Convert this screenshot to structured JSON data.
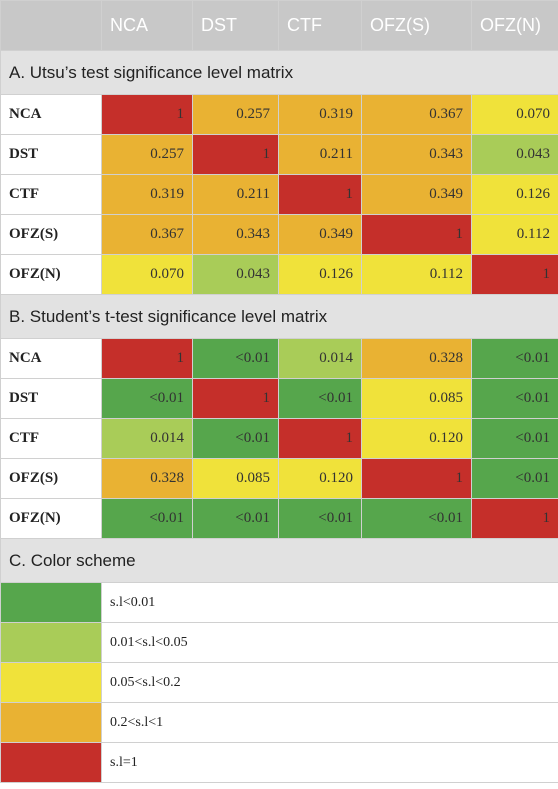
{
  "colors": {
    "dark_green": "#56a64c",
    "light_green": "#a9cc58",
    "yellow": "#f0e23a",
    "orange": "#e9b233",
    "red": "#c52f2a"
  },
  "header": [
    "",
    "NCA",
    "DST",
    "CTF",
    "OFZ(S)",
    "OFZ(N)"
  ],
  "utsu": {
    "title": "A. Utsu’s test significance level matrix",
    "rows": [
      {
        "label": "NCA",
        "cells": [
          {
            "v": "1",
            "c": "red"
          },
          {
            "v": "0.257",
            "c": "orange"
          },
          {
            "v": "0.319",
            "c": "orange"
          },
          {
            "v": "0.367",
            "c": "orange"
          },
          {
            "v": "0.070",
            "c": "yellow"
          }
        ]
      },
      {
        "label": "DST",
        "cells": [
          {
            "v": "0.257",
            "c": "orange"
          },
          {
            "v": "1",
            "c": "red"
          },
          {
            "v": "0.211",
            "c": "orange"
          },
          {
            "v": "0.343",
            "c": "orange"
          },
          {
            "v": "0.043",
            "c": "light_green"
          }
        ]
      },
      {
        "label": "CTF",
        "cells": [
          {
            "v": "0.319",
            "c": "orange"
          },
          {
            "v": "0.211",
            "c": "orange"
          },
          {
            "v": "1",
            "c": "red"
          },
          {
            "v": "0.349",
            "c": "orange"
          },
          {
            "v": "0.126",
            "c": "yellow"
          }
        ]
      },
      {
        "label": "OFZ(S)",
        "cells": [
          {
            "v": "0.367",
            "c": "orange"
          },
          {
            "v": "0.343",
            "c": "orange"
          },
          {
            "v": "0.349",
            "c": "orange"
          },
          {
            "v": "1",
            "c": "red"
          },
          {
            "v": "0.112",
            "c": "yellow"
          }
        ]
      },
      {
        "label": "OFZ(N)",
        "cells": [
          {
            "v": "0.070",
            "c": "yellow"
          },
          {
            "v": "0.043",
            "c": "light_green"
          },
          {
            "v": "0.126",
            "c": "yellow"
          },
          {
            "v": "0.112",
            "c": "yellow"
          },
          {
            "v": "1",
            "c": "red"
          }
        ]
      }
    ]
  },
  "student": {
    "title": "B. Student’s t-test significance level matrix",
    "rows": [
      {
        "label": "NCA",
        "cells": [
          {
            "v": "1",
            "c": "red"
          },
          {
            "v": "<0.01",
            "c": "dark_green"
          },
          {
            "v": "0.014",
            "c": "light_green"
          },
          {
            "v": "0.328",
            "c": "orange"
          },
          {
            "v": "<0.01",
            "c": "dark_green"
          }
        ]
      },
      {
        "label": "DST",
        "cells": [
          {
            "v": "<0.01",
            "c": "dark_green"
          },
          {
            "v": "1",
            "c": "red"
          },
          {
            "v": "<0.01",
            "c": "dark_green"
          },
          {
            "v": "0.085",
            "c": "yellow"
          },
          {
            "v": "<0.01",
            "c": "dark_green"
          }
        ]
      },
      {
        "label": "CTF",
        "cells": [
          {
            "v": "0.014",
            "c": "light_green"
          },
          {
            "v": "<0.01",
            "c": "dark_green"
          },
          {
            "v": "1",
            "c": "red"
          },
          {
            "v": "0.120",
            "c": "yellow"
          },
          {
            "v": "<0.01",
            "c": "dark_green"
          }
        ]
      },
      {
        "label": "OFZ(S)",
        "cells": [
          {
            "v": "0.328",
            "c": "orange"
          },
          {
            "v": "0.085",
            "c": "yellow"
          },
          {
            "v": "0.120",
            "c": "yellow"
          },
          {
            "v": "1",
            "c": "red"
          },
          {
            "v": "<0.01",
            "c": "dark_green"
          }
        ]
      },
      {
        "label": "OFZ(N)",
        "cells": [
          {
            "v": "<0.01",
            "c": "dark_green"
          },
          {
            "v": "<0.01",
            "c": "dark_green"
          },
          {
            "v": "<0.01",
            "c": "dark_green"
          },
          {
            "v": "<0.01",
            "c": "dark_green"
          },
          {
            "v": "1",
            "c": "red"
          }
        ]
      }
    ]
  },
  "scheme": {
    "title": "C. Color scheme",
    "items": [
      {
        "label": "s.l<0.01",
        "c": "dark_green"
      },
      {
        "label": "0.01<s.l<0.05",
        "c": "light_green"
      },
      {
        "label": "0.05<s.l<0.2",
        "c": "yellow"
      },
      {
        "label": "0.2<s.l<1",
        "c": "orange"
      },
      {
        "label": "s.l=1",
        "c": "red"
      }
    ]
  }
}
